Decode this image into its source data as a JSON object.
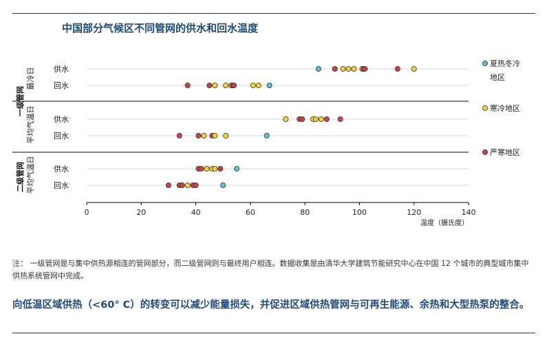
{
  "title": "中国部分气候区不同管网的供水和回水温度",
  "note": {
    "label": "注：",
    "text": "一级管网是与集中供热源相连的管网部分，而二级管网则与最终用户相连。数据收集是由清华大学建筑节能研究中心在中国 12 个城市的典型城市集中供热系统管网中完成。"
  },
  "conclusion": "向低温区域供热（<60° C）的转变可以减少能量损失，并促进区域供热管网与可再生能源、余热和大型热泵的整合。",
  "colors": {
    "hot_summer_cold_winter": "#5bc0de",
    "cold": "#f5d13a",
    "severe_cold": "#d04040",
    "marker_stroke": "#333333",
    "grid": "#d9d9d9",
    "divider": "#000000"
  },
  "chart_data": {
    "type": "scatter",
    "xlabel": "温度（摄氏度）",
    "xlim": [
      0,
      140
    ],
    "xticks": [
      "0",
      "20",
      "40",
      "60",
      "80",
      "100",
      "120",
      "140"
    ],
    "grid": "horizontal",
    "legend_position": "right",
    "groups": [
      {
        "tier": "一级管网",
        "condition_lines": [
          "最冷日"
        ],
        "rows": [
          {
            "label": "供水",
            "points": [
              {
                "x": 85,
                "s": "hot_summer_cold_winter"
              },
              {
                "x": 91,
                "s": "severe_cold"
              },
              {
                "x": 94,
                "s": "cold"
              },
              {
                "x": 96,
                "s": "cold"
              },
              {
                "x": 98,
                "s": "cold"
              },
              {
                "x": 101,
                "s": "cold"
              },
              {
                "x": 101.5,
                "s": "severe_cold"
              },
              {
                "x": 102,
                "s": "severe_cold"
              },
              {
                "x": 114,
                "s": "severe_cold"
              },
              {
                "x": 120,
                "s": "cold"
              }
            ]
          },
          {
            "label": "回水",
            "points": [
              {
                "x": 37,
                "s": "severe_cold"
              },
              {
                "x": 45,
                "s": "severe_cold"
              },
              {
                "x": 47,
                "s": "cold"
              },
              {
                "x": 51,
                "s": "cold"
              },
              {
                "x": 53,
                "s": "cold"
              },
              {
                "x": 53.5,
                "s": "severe_cold"
              },
              {
                "x": 54,
                "s": "severe_cold"
              },
              {
                "x": 61,
                "s": "cold"
              },
              {
                "x": 63,
                "s": "cold"
              },
              {
                "x": 67,
                "s": "hot_summer_cold_winter"
              }
            ]
          }
        ]
      },
      {
        "tier": "",
        "condition_lines": [
          "平均气温日"
        ],
        "rows": [
          {
            "label": "供水",
            "points": [
              {
                "x": 73,
                "s": "cold"
              },
              {
                "x": 78,
                "s": "severe_cold"
              },
              {
                "x": 79,
                "s": "severe_cold"
              },
              {
                "x": 83,
                "s": "cold"
              },
              {
                "x": 84,
                "s": "cold"
              },
              {
                "x": 86,
                "s": "cold"
              },
              {
                "x": 88,
                "s": "severe_cold"
              },
              {
                "x": 93,
                "s": "severe_cold"
              }
            ]
          },
          {
            "label": "回水",
            "points": [
              {
                "x": 34,
                "s": "severe_cold"
              },
              {
                "x": 41,
                "s": "severe_cold"
              },
              {
                "x": 43,
                "s": "cold"
              },
              {
                "x": 46,
                "s": "severe_cold"
              },
              {
                "x": 47,
                "s": "cold"
              },
              {
                "x": 51,
                "s": "cold"
              },
              {
                "x": 66,
                "s": "hot_summer_cold_winter"
              }
            ]
          }
        ]
      },
      {
        "tier": "二级管网",
        "condition_lines": [
          "平均气温日"
        ],
        "rows": [
          {
            "label": "供水",
            "points": [
              {
                "x": 41,
                "s": "severe_cold"
              },
              {
                "x": 42,
                "s": "severe_cold"
              },
              {
                "x": 44,
                "s": "cold"
              },
              {
                "x": 46,
                "s": "cold"
              },
              {
                "x": 47,
                "s": "cold"
              },
              {
                "x": 49,
                "s": "severe_cold"
              },
              {
                "x": 55,
                "s": "hot_summer_cold_winter"
              }
            ]
          },
          {
            "label": "回水",
            "points": [
              {
                "x": 30,
                "s": "severe_cold"
              },
              {
                "x": 34,
                "s": "severe_cold"
              },
              {
                "x": 35,
                "s": "severe_cold"
              },
              {
                "x": 37,
                "s": "cold"
              },
              {
                "x": 39,
                "s": "severe_cold"
              },
              {
                "x": 40,
                "s": "severe_cold"
              },
              {
                "x": 50,
                "s": "hot_summer_cold_winter"
              }
            ]
          }
        ]
      }
    ],
    "legend": [
      {
        "key": "hot_summer_cold_winter",
        "lines": [
          "夏热冬冷",
          "地区"
        ]
      },
      {
        "key": "cold",
        "lines": [
          "寒冷地区"
        ]
      },
      {
        "key": "severe_cold",
        "lines": [
          "严寒地区"
        ]
      }
    ]
  }
}
